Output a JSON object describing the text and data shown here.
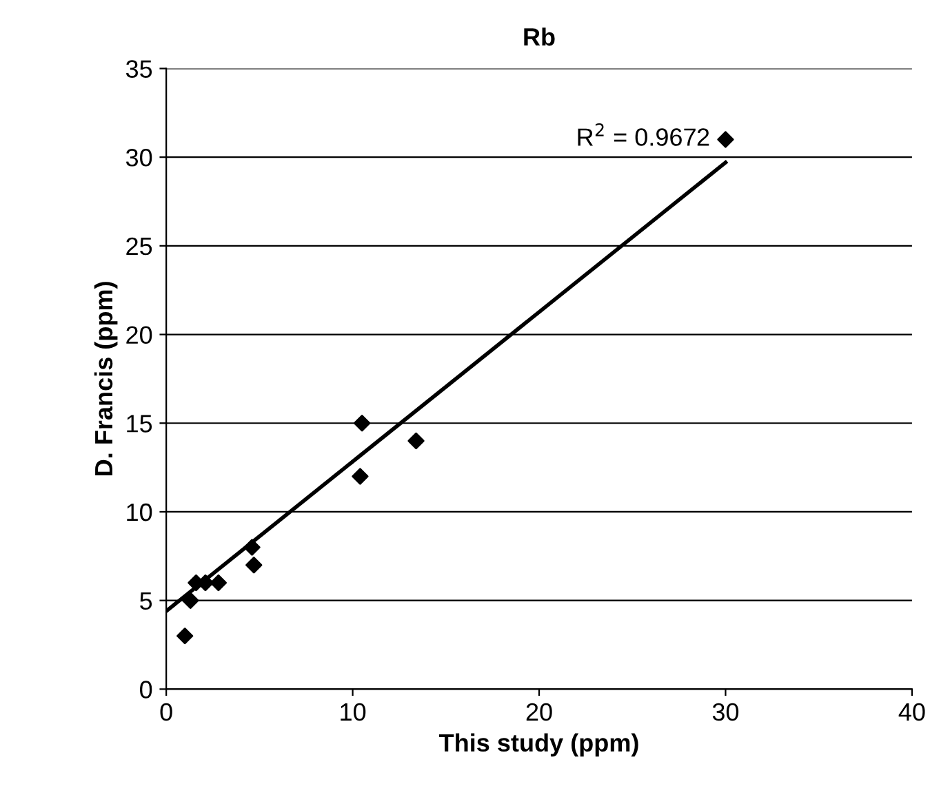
{
  "chart_data": {
    "type": "scatter",
    "title": "Rb",
    "xlabel": "This study (ppm)",
    "ylabel": "D. Francis (ppm)",
    "series": [
      {
        "color": "#000000",
        "marker": "diamond",
        "x": [
          1.0,
          1.3,
          1.6,
          2.1,
          2.8,
          4.6,
          4.7,
          10.4,
          10.5,
          13.4,
          30
        ],
        "values": [
          3,
          5,
          6,
          6,
          6,
          8,
          7,
          12,
          15,
          14,
          31
        ]
      },
      {
        "type": "line",
        "color": "#000000",
        "marker": "none",
        "x": [
          0,
          30
        ],
        "values": [
          4.4,
          29.7
        ]
      }
    ],
    "annotations": [
      {
        "text": "R$^{2}$ = 0.9672",
        "x": 30,
        "y": 31
      }
    ],
    "xlim": [
      0,
      40
    ],
    "xticks": [
      0,
      10,
      20,
      30,
      40
    ],
    "ylim": [
      0,
      35
    ],
    "yticks": [
      0,
      5,
      10,
      15,
      20,
      25,
      30,
      35
    ],
    "grid": "y",
    "legend": false
  }
}
